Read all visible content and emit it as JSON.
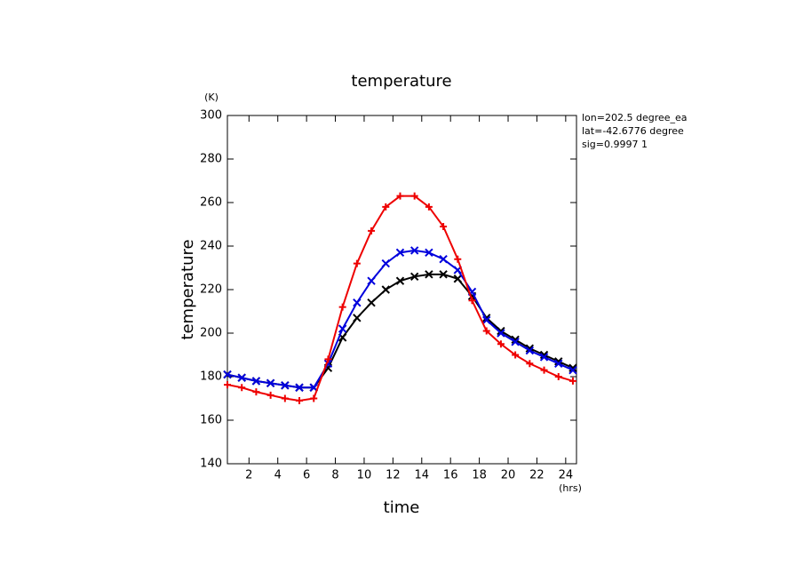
{
  "chart_data": {
    "type": "line",
    "title": "temperature",
    "y_label": "temperature",
    "y_unit": "(K)",
    "x_label": "time",
    "x_unit": "(hrs)",
    "annotations": [
      "lon=202.5 degree_ea",
      "lat=-42.6776 degree",
      "sig=0.9997 1"
    ],
    "x": [
      0.5,
      1.5,
      2.5,
      3.5,
      4.5,
      5.5,
      6.5,
      7.5,
      8.5,
      9.5,
      10.5,
      11.5,
      12.5,
      13.5,
      14.5,
      15.5,
      16.5,
      17.5,
      18.5,
      19.5,
      20.5,
      21.5,
      22.5,
      23.5,
      24.5
    ],
    "series": [
      {
        "color": "#000000",
        "marker": "x",
        "values": [
          181,
          179.5,
          178,
          177,
          176,
          175,
          175,
          184,
          198,
          207,
          214,
          220,
          224,
          226,
          227,
          227,
          225,
          217,
          207,
          201,
          197,
          193,
          190,
          187,
          184
        ]
      },
      {
        "color": "#0000dd",
        "marker": "x",
        "values": [
          181,
          179.5,
          178,
          177,
          176,
          175,
          175,
          186,
          202,
          214,
          224,
          232,
          237,
          238,
          237,
          234,
          229,
          219,
          206,
          200,
          196,
          192,
          189,
          186,
          183
        ]
      },
      {
        "color": "#ee0000",
        "marker": "+",
        "values": [
          176.3,
          175,
          173,
          171.5,
          170,
          169,
          170,
          188,
          212,
          232,
          247,
          258,
          263,
          263,
          258,
          249,
          234,
          215,
          201,
          195,
          190,
          186,
          183,
          180,
          178
        ]
      }
    ],
    "xlim": [
      0.5,
      24.75
    ],
    "ylim": [
      140,
      300
    ],
    "xticks": [
      2,
      4,
      6,
      8,
      10,
      12,
      14,
      16,
      18,
      20,
      22,
      24
    ],
    "yticks": [
      140,
      160,
      180,
      200,
      220,
      240,
      260,
      280,
      300
    ]
  }
}
